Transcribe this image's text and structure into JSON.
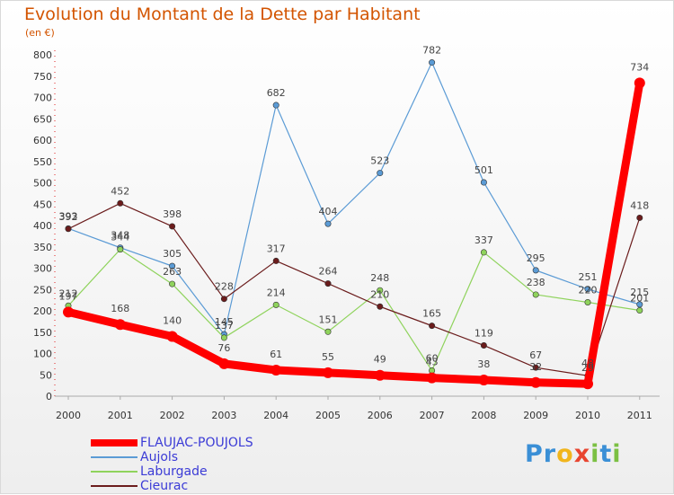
{
  "title": "Evolution du Montant de la Dette par Habitant",
  "subtitle": "(en €)",
  "logo": {
    "text": "Proxiti",
    "letters": [
      {
        "ch": "P",
        "color": "#3a8fd6"
      },
      {
        "ch": "r",
        "color": "#3a8fd6"
      },
      {
        "ch": "o",
        "color": "#f1b51c"
      },
      {
        "ch": "x",
        "color": "#e8442f"
      },
      {
        "ch": "i",
        "color": "#7bc043"
      },
      {
        "ch": "t",
        "color": "#3a8fd6"
      },
      {
        "ch": "i",
        "color": "#7bc043"
      }
    ]
  },
  "chart_data": {
    "type": "line",
    "x": [
      "2000",
      "2001",
      "2002",
      "2003",
      "2004",
      "2005",
      "2006",
      "2007",
      "2008",
      "2009",
      "2010",
      "2011"
    ],
    "ylim": [
      0,
      800
    ],
    "yticks": [
      0,
      50,
      100,
      150,
      200,
      250,
      300,
      350,
      400,
      450,
      500,
      550,
      600,
      650,
      700,
      750,
      800
    ],
    "grid": false,
    "legend": "bottom-left",
    "series": [
      {
        "name": "FLAUJAC-POUJOLS",
        "color": "#ff0000",
        "values": [
          197,
          168,
          140,
          76,
          61,
          55,
          49,
          43,
          38,
          32,
          29,
          734
        ]
      },
      {
        "name": "Aujols",
        "color": "#5b9bd5",
        "values": [
          393,
          348,
          305,
          145,
          682,
          404,
          523,
          782,
          501,
          295,
          251,
          215
        ]
      },
      {
        "name": "Laburgade",
        "color": "#8fd35c",
        "values": [
          212,
          344,
          263,
          137,
          214,
          151,
          248,
          60,
          337,
          238,
          220,
          201
        ]
      },
      {
        "name": "Cieurac",
        "color": "#6b1c1c",
        "values": [
          392,
          452,
          398,
          228,
          317,
          264,
          210,
          165,
          119,
          67,
          48,
          418
        ]
      }
    ]
  }
}
